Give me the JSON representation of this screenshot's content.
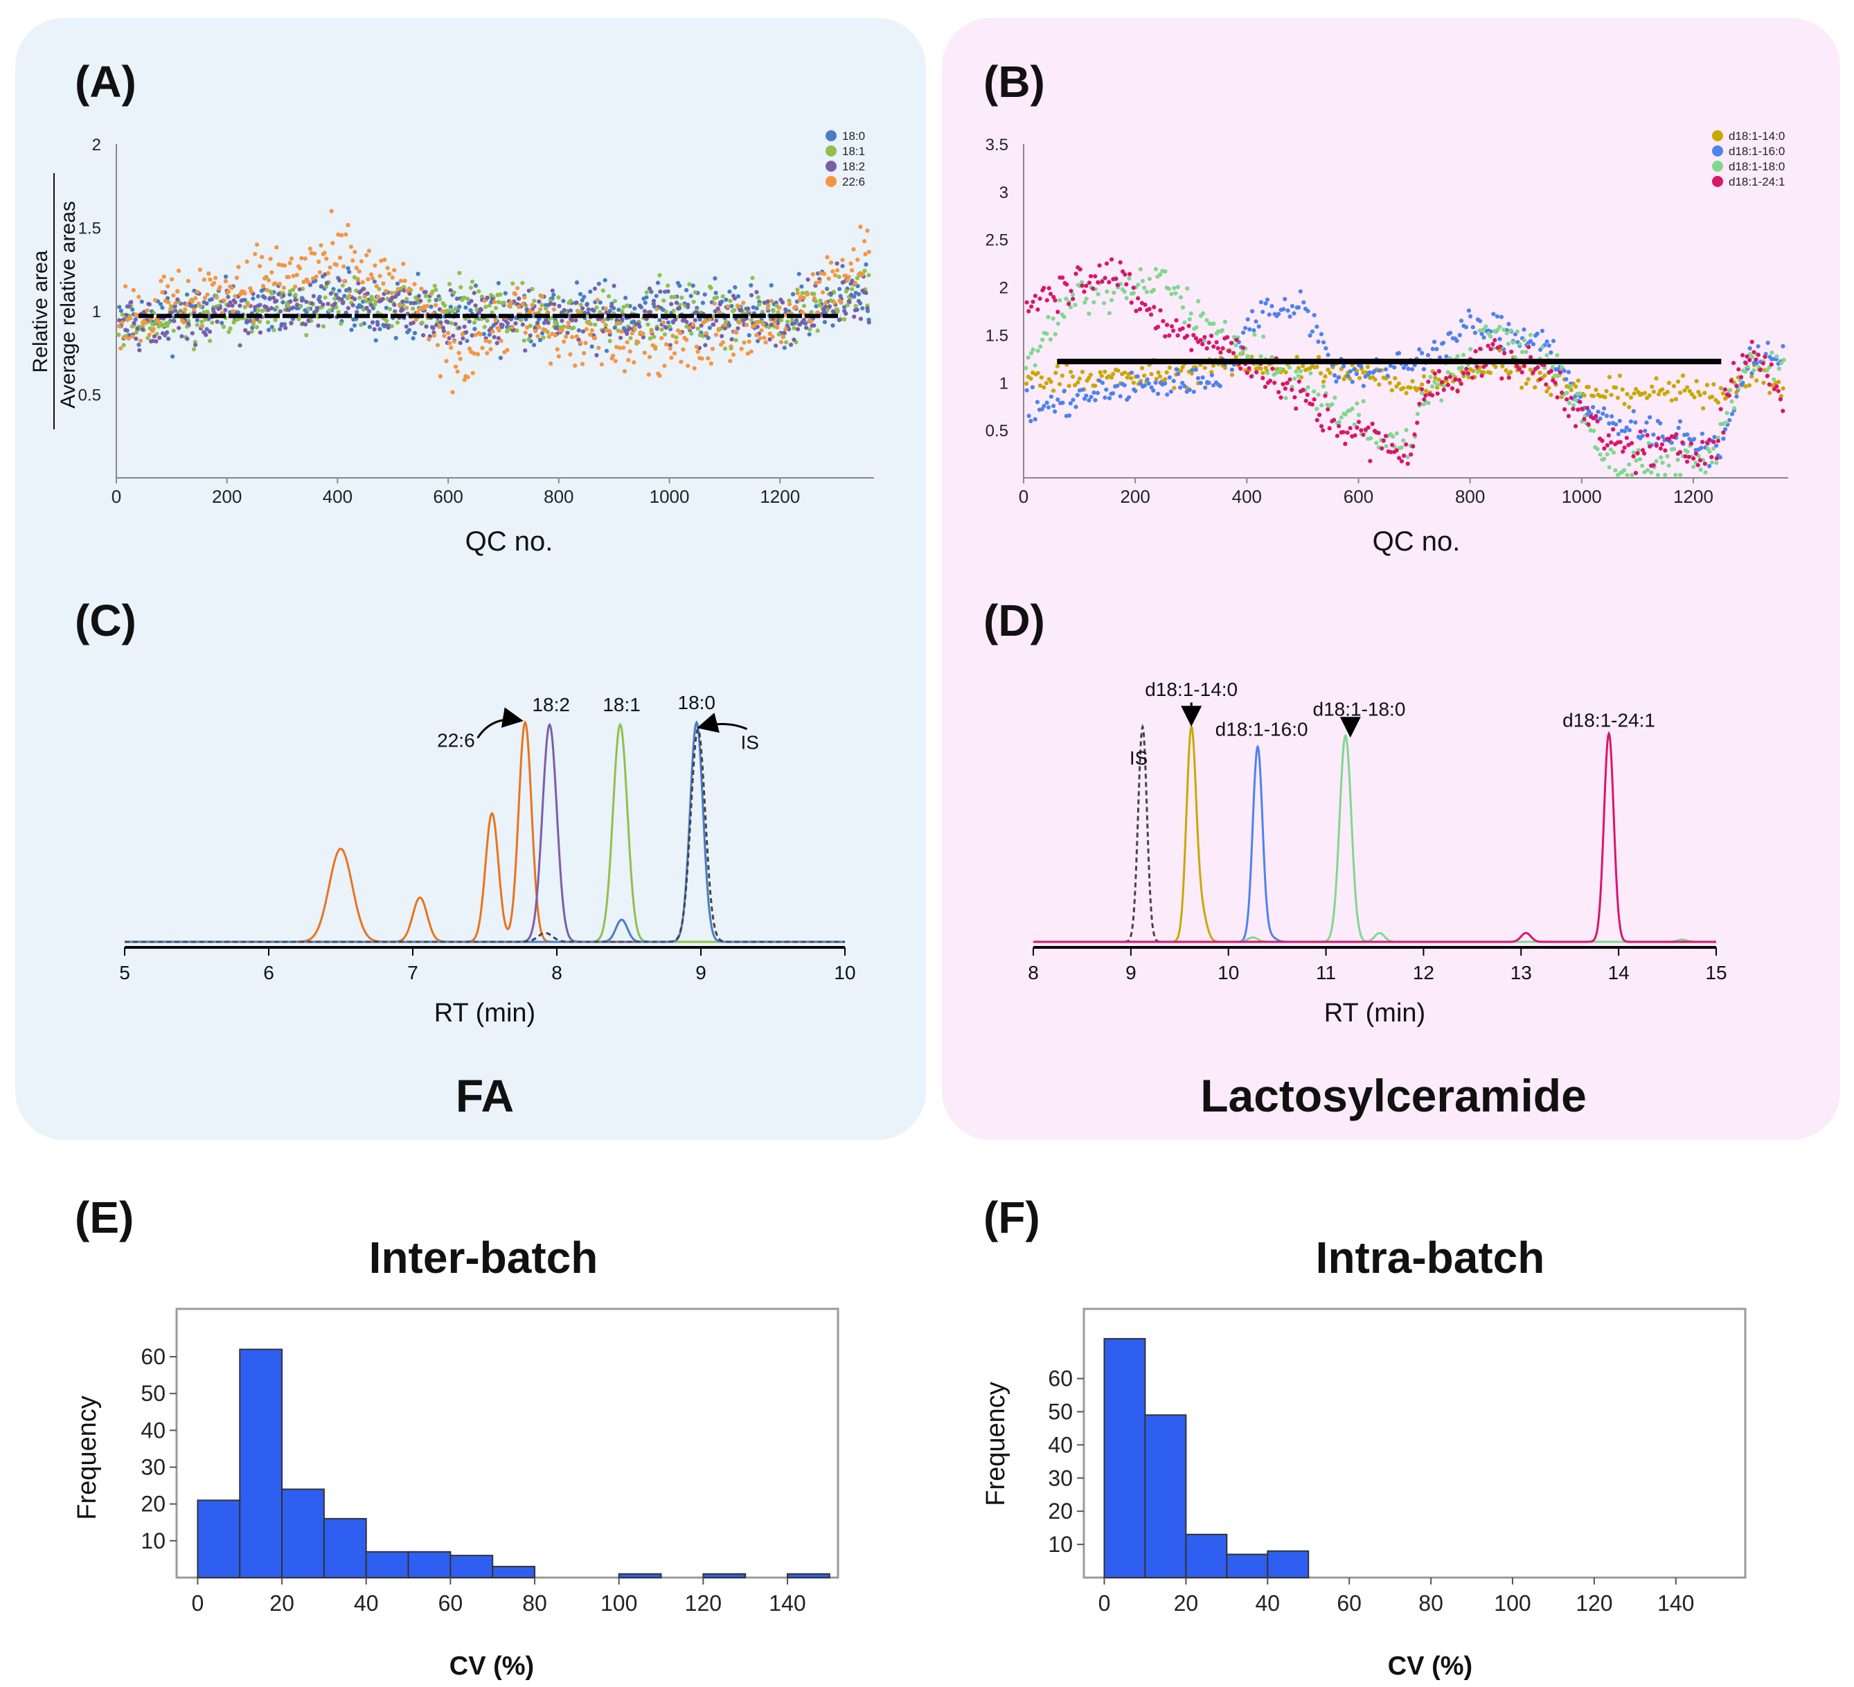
{
  "colors": {
    "panel_bg_left": "#eaf2fa",
    "panel_bg_right": "#fcebfa",
    "fa_18_0": "#4a7cc4",
    "fa_18_1": "#8fc04a",
    "fa_18_2": "#7b5ea7",
    "fa_22_6": "#f59540",
    "fa_22_6_line": "#e8741c",
    "is_line": "#444444",
    "lc_14_0": "#c8a800",
    "lc_16_0": "#4d82f0",
    "lc_18_0": "#7fd88f",
    "lc_24_1": "#d8166a",
    "hist_bar": "#2f5ff0"
  },
  "group_titles": {
    "left": "FA",
    "right": "Lactosylceramide"
  },
  "chart_data": [
    {
      "id": "A",
      "panel_label": "(A)",
      "type": "scatter",
      "title": "",
      "xlabel": "QC no.",
      "ylabel_top": "Relative area",
      "ylabel_bottom": "Average relative areas",
      "xlim": [
        0,
        1370
      ],
      "ylim": [
        0,
        2
      ],
      "xticks": [
        "0",
        "200",
        "400",
        "600",
        "800",
        "1000",
        "1200"
      ],
      "yticks": [
        "0.5",
        "1",
        "1.5",
        "2"
      ],
      "reference_line": {
        "y": 0.97,
        "x_start": 40,
        "x_end": 1310
      },
      "legend_position": "top-right",
      "series": [
        {
          "name": "18:0",
          "knots": [
            [
              0,
              0.93
            ],
            [
              200,
              1.0
            ],
            [
              400,
              1.05
            ],
            [
              600,
              0.98
            ],
            [
              800,
              0.98
            ],
            [
              1000,
              1.02
            ],
            [
              1200,
              0.98
            ],
            [
              1370,
              1.12
            ]
          ],
          "noise": 0.09
        },
        {
          "name": "18:1",
          "knots": [
            [
              0,
              0.88
            ],
            [
              200,
              0.95
            ],
            [
              400,
              1.05
            ],
            [
              600,
              1.05
            ],
            [
              800,
              0.95
            ],
            [
              1000,
              0.98
            ],
            [
              1200,
              0.97
            ],
            [
              1370,
              1.15
            ]
          ],
          "noise": 0.08
        },
        {
          "name": "18:2",
          "knots": [
            [
              0,
              0.9
            ],
            [
              200,
              0.98
            ],
            [
              400,
              1.08
            ],
            [
              600,
              0.95
            ],
            [
              800,
              0.96
            ],
            [
              1000,
              0.95
            ],
            [
              1200,
              0.97
            ],
            [
              1370,
              1.1
            ]
          ],
          "noise": 0.08
        },
        {
          "name": "22:6",
          "knots": [
            [
              0,
              0.95
            ],
            [
              200,
              1.15
            ],
            [
              400,
              1.3
            ],
            [
              520,
              1.1
            ],
            [
              620,
              0.72
            ],
            [
              720,
              1.0
            ],
            [
              800,
              0.85
            ],
            [
              1000,
              0.8
            ],
            [
              1200,
              0.92
            ],
            [
              1370,
              1.35
            ]
          ],
          "noise": 0.1
        }
      ]
    },
    {
      "id": "B",
      "panel_label": "(B)",
      "type": "scatter",
      "title": "",
      "xlabel": "QC no.",
      "xlim": [
        0,
        1370
      ],
      "ylim": [
        0,
        3.5
      ],
      "xticks": [
        "0",
        "200",
        "400",
        "600",
        "800",
        "1000",
        "1200"
      ],
      "yticks": [
        "0.5",
        "1",
        "1.5",
        "2",
        "2.5",
        "3",
        "3.5"
      ],
      "reference_line": {
        "y": 1.22,
        "x_start": 60,
        "x_end": 1250
      },
      "legend_position": "top-right",
      "series": [
        {
          "name": "d18:1-14:0",
          "knots": [
            [
              0,
              1.05
            ],
            [
              200,
              1.05
            ],
            [
              400,
              1.2
            ],
            [
              600,
              1.1
            ],
            [
              700,
              0.95
            ],
            [
              850,
              1.2
            ],
            [
              1000,
              0.9
            ],
            [
              1250,
              0.9
            ],
            [
              1300,
              1.1
            ],
            [
              1370,
              0.95
            ]
          ],
          "noise": 0.07
        },
        {
          "name": "d18:1-16:0",
          "knots": [
            [
              0,
              0.7
            ],
            [
              200,
              0.95
            ],
            [
              350,
              1.05
            ],
            [
              420,
              1.75
            ],
            [
              500,
              1.85
            ],
            [
              560,
              1.1
            ],
            [
              700,
              1.2
            ],
            [
              800,
              1.6
            ],
            [
              940,
              1.45
            ],
            [
              1000,
              0.7
            ],
            [
              1250,
              0.3
            ],
            [
              1300,
              1.25
            ],
            [
              1370,
              1.3
            ]
          ],
          "noise": 0.08
        },
        {
          "name": "d18:1-18:0",
          "knots": [
            [
              0,
              1.2
            ],
            [
              100,
              1.9
            ],
            [
              250,
              2.05
            ],
            [
              350,
              1.5
            ],
            [
              500,
              0.95
            ],
            [
              690,
              0.3
            ],
            [
              720,
              0.9
            ],
            [
              850,
              1.5
            ],
            [
              950,
              1.2
            ],
            [
              1050,
              0.15
            ],
            [
              1230,
              0.15
            ],
            [
              1300,
              1.25
            ],
            [
              1370,
              1.2
            ]
          ],
          "noise": 0.1
        },
        {
          "name": "d18:1-24:1",
          "knots": [
            [
              0,
              1.85
            ],
            [
              150,
              2.2
            ],
            [
              250,
              1.6
            ],
            [
              400,
              1.25
            ],
            [
              560,
              0.55
            ],
            [
              690,
              0.25
            ],
            [
              720,
              0.9
            ],
            [
              850,
              1.3
            ],
            [
              950,
              1.05
            ],
            [
              1050,
              0.3
            ],
            [
              1240,
              0.3
            ],
            [
              1260,
              0.85
            ],
            [
              1300,
              1.35
            ],
            [
              1370,
              0.8
            ]
          ],
          "noise": 0.1
        }
      ]
    },
    {
      "id": "C",
      "panel_label": "(C)",
      "type": "line",
      "title": "",
      "xlabel": "RT (min)",
      "xlim": [
        5,
        10
      ],
      "ylim": [
        0,
        1.05
      ],
      "xticks": [
        "5",
        "6",
        "7",
        "8",
        "9",
        "10"
      ],
      "series": [
        {
          "name": "22:6",
          "color_key": "fa_22_6_line",
          "peaks": [
            [
              6.5,
              0.42,
              0.08
            ],
            [
              7.05,
              0.2,
              0.05
            ],
            [
              7.55,
              0.58,
              0.045
            ],
            [
              7.78,
              0.99,
              0.045
            ]
          ]
        },
        {
          "name": "18:2",
          "color_key": "fa_18_2",
          "peaks": [
            [
              7.95,
              0.98,
              0.05
            ]
          ]
        },
        {
          "name": "18:1",
          "color_key": "fa_18_1",
          "peaks": [
            [
              8.44,
              0.98,
              0.05
            ]
          ]
        },
        {
          "name": "18:0",
          "color_key": "fa_18_0",
          "peaks": [
            [
              8.45,
              0.1,
              0.04
            ],
            [
              8.97,
              0.99,
              0.045
            ]
          ]
        },
        {
          "name": "IS",
          "color_key": "is_line",
          "dashed": true,
          "peaks": [
            [
              7.92,
              0.04,
              0.05
            ],
            [
              8.98,
              0.96,
              0.05
            ]
          ]
        }
      ],
      "annotations": [
        {
          "text": "22:6",
          "x": 7.3,
          "y": 0.88
        },
        {
          "text": "18:2",
          "x": 7.96,
          "y": 1.04
        },
        {
          "text": "18:1",
          "x": 8.45,
          "y": 1.04
        },
        {
          "text": "18:0",
          "x": 8.97,
          "y": 1.05
        },
        {
          "text": "IS",
          "x": 9.34,
          "y": 0.87
        }
      ]
    },
    {
      "id": "D",
      "panel_label": "(D)",
      "type": "line",
      "title": "",
      "xlabel": "RT (min)",
      "xlim": [
        8,
        15
      ],
      "ylim": [
        0,
        1.05
      ],
      "xticks": [
        "8",
        "9",
        "10",
        "11",
        "12",
        "13",
        "14",
        "15"
      ],
      "series": [
        {
          "name": "IS",
          "color_key": "is_line",
          "dashed": true,
          "peaks": [
            [
              9.12,
              0.97,
              0.045
            ]
          ]
        },
        {
          "name": "d18:1-14:0",
          "color_key": "lc_14_0",
          "peaks": [
            [
              9.62,
              0.96,
              0.05
            ],
            [
              9.73,
              0.12,
              0.05
            ]
          ]
        },
        {
          "name": "d18:1-16:0",
          "color_key": "lc_16_0",
          "peaks": [
            [
              10.3,
              0.88,
              0.05
            ],
            [
              10.44,
              0.02,
              0.05
            ]
          ]
        },
        {
          "name": "d18:1-18:0",
          "color_key": "lc_18_0",
          "peaks": [
            [
              10.25,
              0.02,
              0.05
            ],
            [
              11.2,
              0.93,
              0.06
            ],
            [
              11.55,
              0.04,
              0.05
            ],
            [
              14.65,
              0.01,
              0.05
            ]
          ]
        },
        {
          "name": "d18:1-24:1",
          "color_key": "lc_24_1",
          "peaks": [
            [
              13.05,
              0.04,
              0.05
            ],
            [
              13.9,
              0.94,
              0.05
            ]
          ]
        }
      ],
      "annotations": [
        {
          "text": "IS",
          "x": 9.08,
          "y": 0.8
        },
        {
          "text": "d18:1-14:0",
          "x": 9.62,
          "y": 1.11
        },
        {
          "text": "d18:1-16:0",
          "x": 10.34,
          "y": 0.93
        },
        {
          "text": "d18:1-18:0",
          "x": 11.34,
          "y": 1.02
        },
        {
          "text": "d18:1-24:1",
          "x": 13.9,
          "y": 0.97
        }
      ]
    },
    {
      "id": "E",
      "panel_label": "(E)",
      "type": "bar",
      "title": "Inter-batch",
      "xlabel": "CV (%)",
      "ylabel": "Frequency",
      "xlim": [
        -5,
        152
      ],
      "ylim": [
        0,
        73
      ],
      "xticks": [
        "0",
        "20",
        "40",
        "60",
        "80",
        "100",
        "120",
        "140"
      ],
      "yticks": [
        "10",
        "20",
        "30",
        "40",
        "50",
        "60"
      ],
      "bin_edges": [
        0,
        10,
        20,
        30,
        40,
        50,
        60,
        70,
        80,
        90,
        100,
        110,
        120,
        130,
        140,
        150
      ],
      "values": [
        21,
        62,
        24,
        16,
        7,
        7,
        6,
        3,
        0,
        0,
        1,
        0,
        1,
        0,
        1
      ]
    },
    {
      "id": "F",
      "panel_label": "(F)",
      "type": "bar",
      "title": "Intra-batch",
      "xlabel": "CV (%)",
      "ylabel": "Frequency",
      "xlim": [
        -5,
        157
      ],
      "ylim": [
        0,
        81
      ],
      "xticks": [
        "0",
        "20",
        "40",
        "60",
        "80",
        "100",
        "120",
        "140"
      ],
      "yticks": [
        "10",
        "20",
        "30",
        "40",
        "50",
        "60"
      ],
      "bin_edges": [
        0,
        10,
        20,
        30,
        40,
        50
      ],
      "values": [
        72,
        49,
        13,
        7,
        8
      ]
    }
  ]
}
